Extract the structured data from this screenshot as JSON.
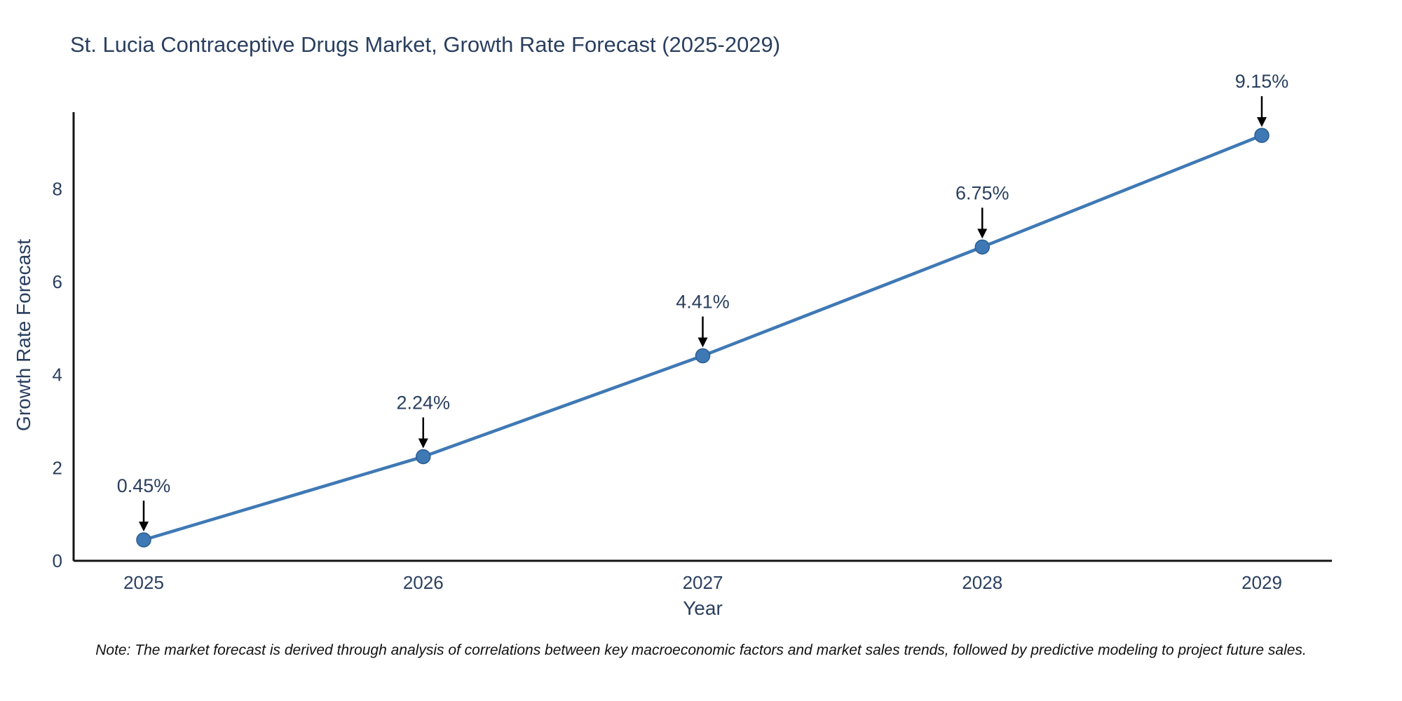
{
  "chart_data": {
    "type": "line",
    "title": "St. Lucia Contraceptive Drugs Market, Growth Rate Forecast (2025-2029)",
    "xlabel": "Year",
    "ylabel": "Growth Rate Forecast",
    "categories": [
      "2025",
      "2026",
      "2027",
      "2028",
      "2029"
    ],
    "values": [
      0.45,
      2.24,
      4.41,
      6.75,
      9.15
    ],
    "labels": [
      "0.45%",
      "2.24%",
      "4.41%",
      "6.75%",
      "9.15%"
    ],
    "yticks": [
      0,
      2,
      4,
      6,
      8
    ],
    "ylim": [
      0,
      9.65
    ],
    "grid": false,
    "legend": "none",
    "line_color": "#3f79b5",
    "marker_color": "#3f79b5",
    "marker_edge_color": "#2a5d8f",
    "axis_color": "#141414",
    "text_color": "#2a3f5f",
    "annotation_arrow_color": "#000000"
  },
  "note": "Note: The market forecast is derived through analysis of correlations between key macroeconomic factors and market sales trends, followed by predictive modeling to project future sales."
}
